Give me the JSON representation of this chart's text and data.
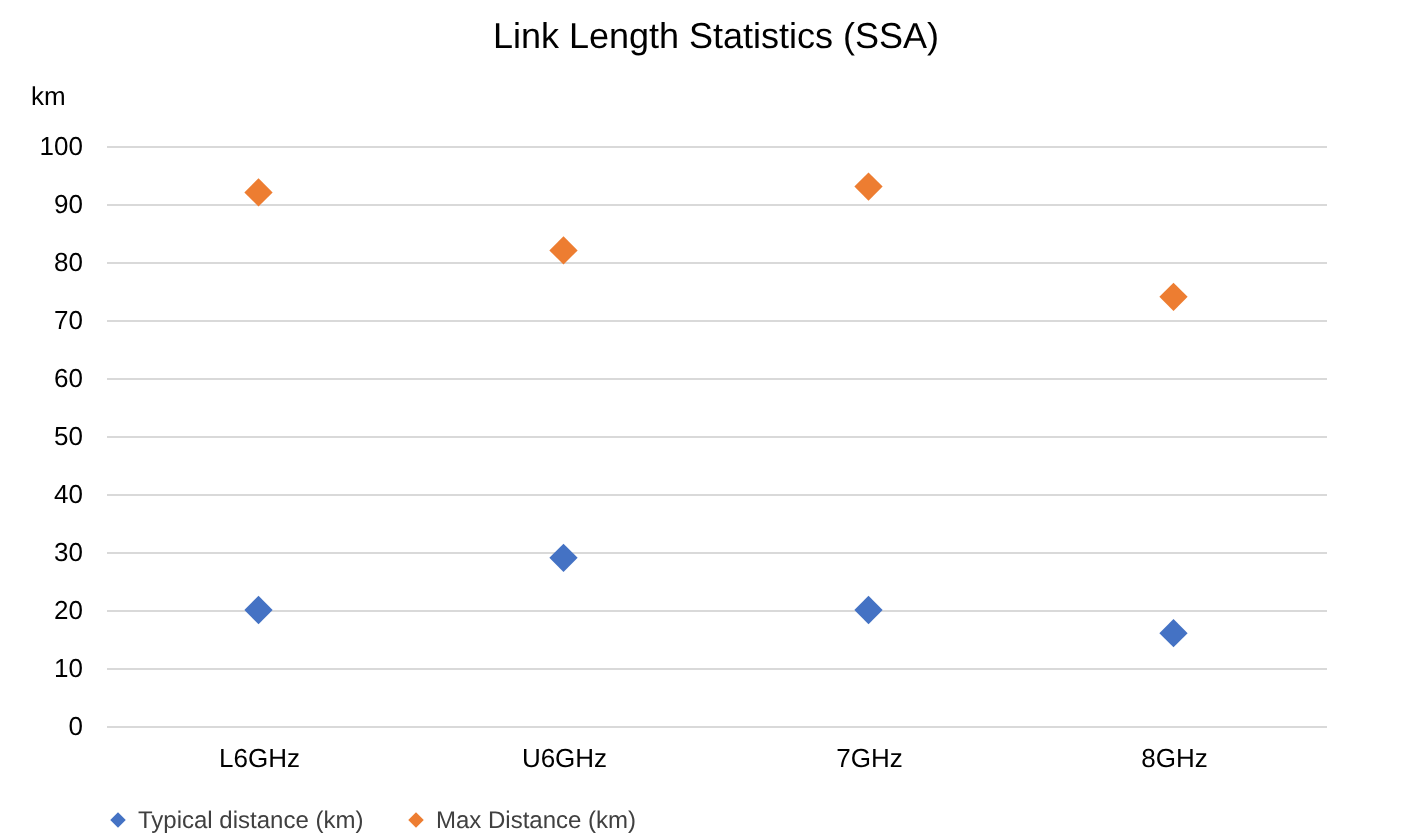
{
  "chart_data": {
    "type": "scatter",
    "title": "Link Length Statistics (SSA)",
    "ylabel": "km",
    "categories": [
      "L6GHz",
      "U6GHz",
      "7GHz",
      "8GHz"
    ],
    "series": [
      {
        "name": "Typical distance (km)",
        "color": "#4472c4",
        "values": [
          20,
          29,
          20,
          16
        ]
      },
      {
        "name": "Max Distance (km)",
        "color": "#ed7d31",
        "values": [
          92,
          82,
          93,
          74
        ]
      }
    ],
    "ylim": [
      0,
      100
    ],
    "yticks": [
      0,
      10,
      20,
      30,
      40,
      50,
      60,
      70,
      80,
      90,
      100
    ],
    "grid": "y",
    "legend": "bottom",
    "marker": "diamond"
  }
}
